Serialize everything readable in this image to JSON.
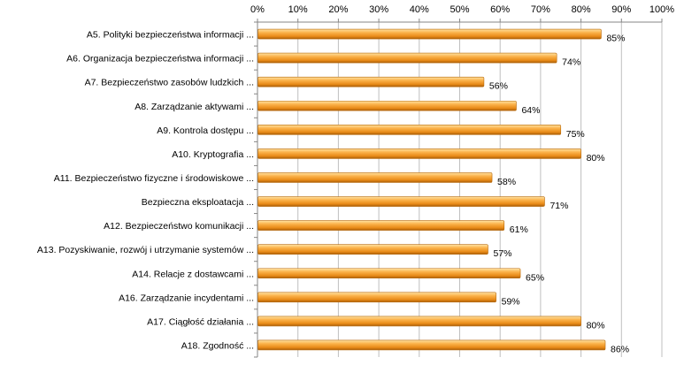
{
  "chart_data": {
    "type": "bar",
    "orientation": "horizontal",
    "categories": [
      "A5. Polityki bezpieczeństwa informacji ...",
      "A6. Organizacja bezpieczeństwa informacji ...",
      "A7. Bezpieczeństwo zasobów ludzkich ...",
      "A8. Zarządzanie aktywami ...",
      "A9. Kontrola dostępu ...",
      "A10. Kryptografia ...",
      "A11. Bezpieczeństwo fizyczne i środowiskowe ...",
      "Bezpieczna eksploatacja ...",
      "A12. Bezpieczeństwo komunikacji ...",
      "A13. Pozyskiwanie, rozwój i utrzymanie systemów ...",
      "A14. Relacje z dostawcami ...",
      "A16. Zarządzanie incydentami ...",
      "A17. Ciągłość działania ...",
      "A18. Zgodność ..."
    ],
    "values": [
      85,
      74,
      56,
      64,
      75,
      80,
      58,
      71,
      61,
      57,
      65,
      59,
      80,
      86
    ],
    "value_labels": [
      "85%",
      "74%",
      "56%",
      "64%",
      "75%",
      "80%",
      "58%",
      "71%",
      "61%",
      "57%",
      "65%",
      "59%",
      "80%",
      "86%"
    ],
    "x_ticks": [
      "0%",
      "10%",
      "20%",
      "30%",
      "40%",
      "50%",
      "60%",
      "70%",
      "80%",
      "90%",
      "100%"
    ],
    "xlim": [
      0,
      100
    ],
    "x_axis_position": "top",
    "grid": true,
    "legend": "none",
    "title": "",
    "xlabel": "",
    "ylabel": "",
    "colors": {
      "bar_light": "#ffd27a",
      "bar_mid": "#f7a33a",
      "bar_dark": "#b86a0c",
      "grid": "#bfbfbf",
      "axis": "#868686"
    }
  }
}
